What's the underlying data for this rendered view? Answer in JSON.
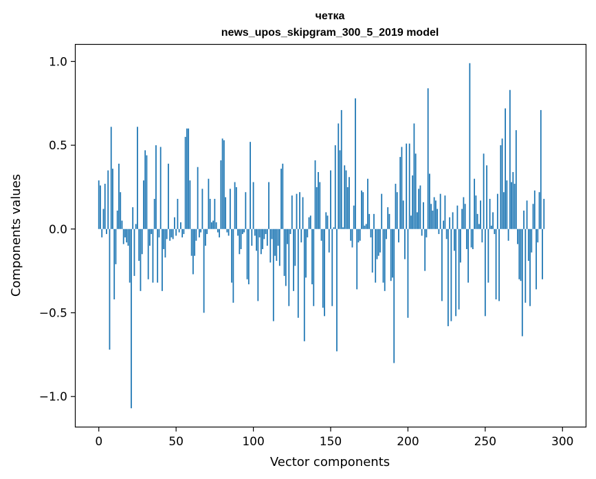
{
  "chart_data": {
    "type": "bar",
    "title": "четка",
    "subtitle": "news_upos_skipgram_300_5_2019 model",
    "xlabel": "Vector components",
    "ylabel": "Components values",
    "xlim": [
      -15,
      315
    ],
    "ylim": [
      -1.18,
      1.1
    ],
    "xticks": [
      0,
      50,
      100,
      150,
      200,
      250,
      300
    ],
    "xtick_labels": [
      "0",
      "50",
      "100",
      "150",
      "200",
      "250",
      "300"
    ],
    "yticks": [
      -1.0,
      -0.5,
      0.0,
      0.5,
      1.0
    ],
    "ytick_labels": [
      "−1.0",
      "−0.5",
      "0.0",
      "0.5",
      "1.0"
    ],
    "bar_color": "#1f77b4",
    "values": [
      0.29,
      0.26,
      -0.05,
      0.12,
      0.27,
      -0.03,
      0.35,
      -0.72,
      0.61,
      0.36,
      -0.42,
      -0.21,
      0.11,
      0.39,
      0.22,
      0.05,
      -0.09,
      -0.05,
      -0.08,
      -0.1,
      -0.32,
      -1.07,
      0.13,
      -0.28,
      0.03,
      0.61,
      -0.19,
      -0.37,
      -0.15,
      0.29,
      0.47,
      0.44,
      -0.3,
      -0.1,
      -0.03,
      -0.32,
      0.18,
      0.5,
      -0.32,
      -0.05,
      0.49,
      -0.37,
      -0.12,
      -0.17,
      -0.06,
      0.39,
      -0.07,
      -0.05,
      -0.06,
      0.07,
      -0.04,
      0.18,
      -0.02,
      0.04,
      -0.05,
      -0.03,
      0.55,
      0.6,
      0.6,
      0.29,
      -0.16,
      -0.27,
      -0.16,
      -0.07,
      0.37,
      -0.05,
      -0.02,
      0.24,
      -0.5,
      -0.1,
      -0.03,
      0.3,
      0.18,
      0.04,
      0.05,
      0.18,
      0.04,
      -0.02,
      -0.05,
      0.41,
      0.54,
      0.53,
      0.19,
      -0.02,
      -0.04,
      0.24,
      -0.32,
      -0.44,
      0.28,
      0.25,
      -0.04,
      -0.15,
      -0.12,
      -0.03,
      -0.02,
      0.22,
      -0.3,
      -0.33,
      0.52,
      -0.1,
      0.28,
      -0.04,
      -0.13,
      -0.43,
      -0.05,
      -0.15,
      -0.12,
      -0.06,
      -0.03,
      -0.1,
      0.28,
      -0.2,
      -0.06,
      -0.55,
      -0.16,
      -0.19,
      -0.1,
      -0.22,
      0.36,
      0.39,
      -0.28,
      -0.34,
      -0.09,
      -0.46,
      -0.03,
      0.2,
      -0.37,
      -0.22,
      0.21,
      -0.53,
      0.22,
      -0.08,
      0.19,
      -0.67,
      -0.29,
      -0.05,
      0.07,
      0.08,
      -0.33,
      -0.46,
      0.41,
      0.25,
      0.34,
      0.28,
      -0.07,
      -0.47,
      -0.52,
      0.1,
      0.08,
      -0.14,
      0.35,
      -0.46,
      0.01,
      0.5,
      -0.73,
      0.63,
      0.47,
      0.71,
      0.01,
      0.38,
      0.35,
      0.25,
      0.31,
      -0.07,
      -0.11,
      0.14,
      0.78,
      -0.36,
      -0.08,
      -0.07,
      0.23,
      0.22,
      0.02,
      0.03,
      0.3,
      0.09,
      -0.05,
      -0.26,
      0.09,
      -0.32,
      -0.18,
      -0.16,
      -0.14,
      0.21,
      -0.32,
      -0.37,
      -0.06,
      0.13,
      0.09,
      -0.31,
      -0.29,
      -0.8,
      0.27,
      0.22,
      -0.08,
      0.43,
      0.49,
      0.17,
      -0.18,
      0.51,
      -0.53,
      0.51,
      0.08,
      0.32,
      0.63,
      0.45,
      0.1,
      0.24,
      0.26,
      -0.04,
      0.16,
      -0.25,
      -0.05,
      0.84,
      0.33,
      0.15,
      0.11,
      0.19,
      0.17,
      0.12,
      -0.03,
      0.21,
      -0.43,
      0.05,
      0.2,
      -0.06,
      -0.58,
      0.07,
      -0.55,
      0.1,
      -0.13,
      -0.52,
      0.14,
      -0.48,
      -0.2,
      0.12,
      0.19,
      0.15,
      -0.12,
      -0.32,
      0.99,
      -0.11,
      -0.12,
      0.3,
      0.2,
      0.09,
      0.03,
      0.17,
      -0.08,
      0.45,
      -0.52,
      0.38,
      -0.32,
      0.18,
      0.02,
      0.1,
      -0.03,
      -0.42,
      0.21,
      -0.43,
      0.5,
      0.54,
      0.22,
      0.72,
      0.29,
      -0.07,
      0.83,
      0.28,
      0.34,
      0.27,
      0.59,
      -0.09,
      -0.3,
      -0.31,
      -0.64,
      0.11,
      -0.44,
      0.17,
      -0.19,
      -0.46,
      -0.14,
      0.15,
      0.23,
      -0.36,
      -0.08,
      0.22,
      0.71,
      -0.3,
      0.18
    ]
  }
}
